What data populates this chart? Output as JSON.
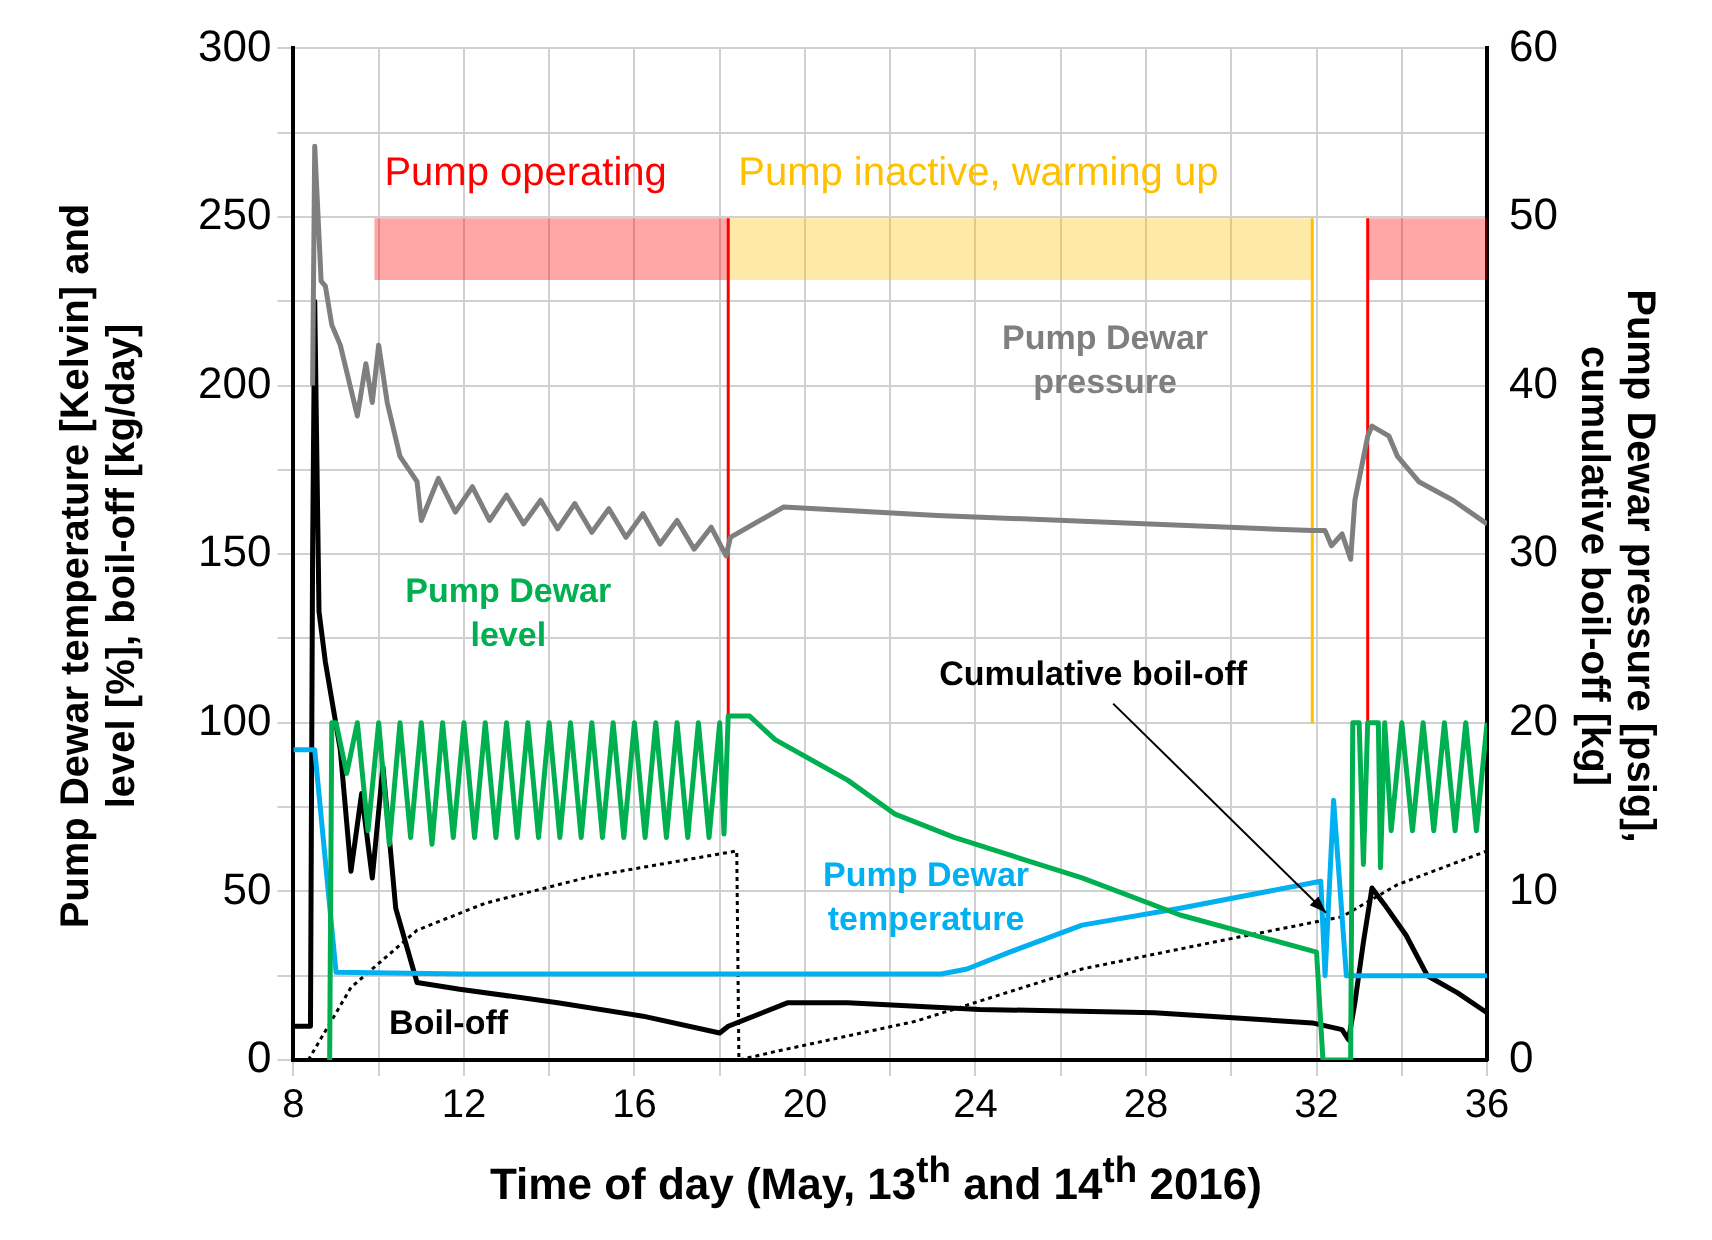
{
  "chart_data": {
    "type": "line",
    "xlabel": "Time of day (May, 13$^{th}$ and 14$^{th}$ 2016)",
    "ylabel": "Pump Dewar  temperature [Kelvin] and level [%], boil-off [kg/day]",
    "y2label": "Pump Dewar pressure [psig], cumulative boil-off [kg]",
    "xlim": [
      8,
      36
    ],
    "xticks": [
      8,
      {
        "value": 10,
        "label": null
      },
      12,
      {
        "value": 14,
        "label": null
      },
      16,
      {
        "value": 18,
        "label": null
      },
      20,
      {
        "value": 22,
        "label": null
      },
      24,
      {
        "value": 26,
        "label": null
      },
      28,
      {
        "value": 30,
        "label": null
      },
      32,
      {
        "value": 34,
        "label": null
      },
      36
    ],
    "ylim": [
      0,
      300
    ],
    "yticks": [
      0,
      {
        "value": 25,
        "label": null
      },
      50,
      {
        "value": 75,
        "label": null
      },
      100,
      {
        "value": 125,
        "label": null
      },
      150,
      {
        "value": 175,
        "label": null
      },
      200,
      {
        "value": 225,
        "label": null
      },
      250,
      {
        "value": 275,
        "label": null
      },
      300
    ],
    "y2lim": [
      0,
      60
    ],
    "y2ticks": [
      0,
      10,
      20,
      30,
      40,
      50,
      60
    ],
    "grid": true,
    "legend": false,
    "marker": "none",
    "ref_lines": [
      {
        "axis": "x",
        "value": 18.2,
        "label": null,
        "color": "#ff0000"
      },
      {
        "axis": "x",
        "value": 31.9,
        "label": null,
        "color": "#ffc000"
      },
      {
        "axis": "x",
        "value": 33.2,
        "label": null,
        "color": "#ff0000"
      }
    ],
    "bands": [
      {
        "axis": "x",
        "from": 9.9,
        "to": 18.2,
        "label": "Pump operating",
        "color": "#ff0000"
      },
      {
        "axis": "x",
        "from": 18.2,
        "to": 31.9,
        "label": "Pump inactive, warming up",
        "color": "#ffc000"
      },
      {
        "axis": "x",
        "from": 33.2,
        "to": 36,
        "label": null,
        "color": "#ff0000"
      }
    ],
    "series": [
      {
        "name": "Pump Dewar pressure",
        "color": "#7f7f7f",
        "axis": "y2",
        "line_style": "solid",
        "x": [
          8.45,
          8.5,
          8.65,
          8.75,
          8.9,
          9.1,
          9.5,
          9.7,
          9.85,
          10.0,
          10.2,
          10.5,
          10.9,
          11.0,
          11.4,
          11.8,
          12.2,
          12.6,
          13.0,
          13.4,
          13.8,
          14.2,
          14.6,
          15.0,
          15.4,
          15.8,
          16.2,
          16.6,
          17.0,
          17.4,
          17.8,
          18.15,
          18.25,
          19.5,
          23.1,
          31.9,
          32.2,
          32.35,
          32.6,
          32.8,
          32.9,
          33.2,
          33.3,
          33.7,
          33.9,
          34.4,
          35.2,
          36.0
        ],
        "values": [
          40,
          54.2,
          46.2,
          45.9,
          43.6,
          42.4,
          38.2,
          41.3,
          39,
          42.4,
          39,
          35.8,
          34.3,
          32,
          34.5,
          32.5,
          34,
          32,
          33.5,
          31.8,
          33.2,
          31.5,
          33,
          31.3,
          32.7,
          31,
          32.4,
          30.6,
          32,
          30.3,
          31.6,
          29.9,
          31,
          32.8,
          32.3,
          31.4,
          31.4,
          30.5,
          31.2,
          29.7,
          33.2,
          37,
          37.6,
          37,
          35.8,
          34.3,
          33.2,
          31.8
        ]
      },
      {
        "name": "Pump Dewar level",
        "color": "#00b050",
        "axis": "y",
        "line_style": "solid",
        "x": [
          8.85,
          8.9,
          9.0,
          9.25,
          9.5,
          9.75,
          10.0,
          10.25,
          10.5,
          10.75,
          11.0,
          11.25,
          11.5,
          11.75,
          12.0,
          12.25,
          12.5,
          12.75,
          13.0,
          13.25,
          13.5,
          13.75,
          14.0,
          14.25,
          14.5,
          14.75,
          15.0,
          15.25,
          15.5,
          15.75,
          16.0,
          16.25,
          16.5,
          16.75,
          17.0,
          17.25,
          17.5,
          17.75,
          18.0,
          18.1,
          18.2,
          18.7,
          19.3,
          21.0,
          22.1,
          23.5,
          26.5,
          28.8,
          32.0,
          32.15,
          32.8,
          32.85,
          33.0,
          33.1,
          33.2,
          33.45,
          33.5,
          33.6,
          33.75,
          34.0,
          34.25,
          34.5,
          34.75,
          35.0,
          35.25,
          35.5,
          35.75,
          36.0
        ],
        "values": [
          0,
          100,
          100,
          85,
          100,
          68,
          100,
          64,
          100,
          66,
          100,
          64,
          100,
          66,
          100,
          66,
          100,
          66,
          100,
          66,
          100,
          66,
          100,
          66,
          100,
          66,
          100,
          66,
          100,
          66,
          100,
          66,
          100,
          66,
          100,
          66,
          100,
          66,
          100,
          67,
          102,
          102,
          95,
          83,
          73,
          66,
          54,
          43,
          32,
          0,
          0,
          100,
          100,
          58,
          100,
          100,
          57,
          100,
          68,
          100,
          68,
          100,
          68,
          100,
          68,
          100,
          68,
          100
        ]
      },
      {
        "name": "Pump Dewar temperature",
        "color": "#00b0f0",
        "axis": "y",
        "line_style": "solid",
        "x": [
          8.0,
          8.5,
          9.0,
          12.0,
          16.0,
          20.0,
          23.2,
          23.8,
          24.8,
          26.5,
          28.8,
          32.1,
          32.2,
          32.4,
          32.7,
          33.5,
          36.0
        ],
        "values": [
          92,
          92,
          26,
          25.5,
          25.5,
          25.5,
          25.5,
          27,
          32,
          40,
          45,
          53,
          25,
          77,
          25,
          25,
          25
        ]
      },
      {
        "name": "Boil-off",
        "color": "#000000",
        "axis": "y",
        "line_style": "solid",
        "x": [
          8.0,
          8.4,
          8.45,
          8.5,
          8.6,
          8.75,
          9.1,
          9.35,
          9.6,
          9.85,
          10.1,
          10.4,
          10.9,
          11.9,
          14.2,
          16.2,
          18.0,
          18.2,
          19.6,
          21.0,
          24.1,
          28.2,
          31.9,
          32.6,
          32.75,
          32.9,
          33.1,
          33.3,
          33.6,
          34.1,
          34.6,
          35.3,
          36.0
        ],
        "values": [
          10,
          10,
          150,
          225,
          133,
          118,
          92,
          56,
          79,
          54,
          87,
          45,
          23,
          21,
          17,
          13,
          8,
          10,
          17,
          17,
          15,
          14,
          11,
          9,
          6,
          17,
          35,
          51,
          46,
          37,
          25,
          20,
          14
        ]
      },
      {
        "name": "Cumulative boil-off",
        "color": "#000000",
        "axis": "y2",
        "line_style": "dotted",
        "x": [
          8.35,
          9.35,
          10.9,
          12.5,
          15.0,
          18.4,
          18.45,
          19.3,
          22.6,
          26.5,
          29.8,
          32.6,
          33.9,
          36.0
        ],
        "values": [
          0,
          4.3,
          7.7,
          9.3,
          10.9,
          12.4,
          0,
          0.5,
          2.3,
          5.4,
          7.1,
          8.5,
          10.4,
          12.4
        ]
      }
    ]
  }
}
